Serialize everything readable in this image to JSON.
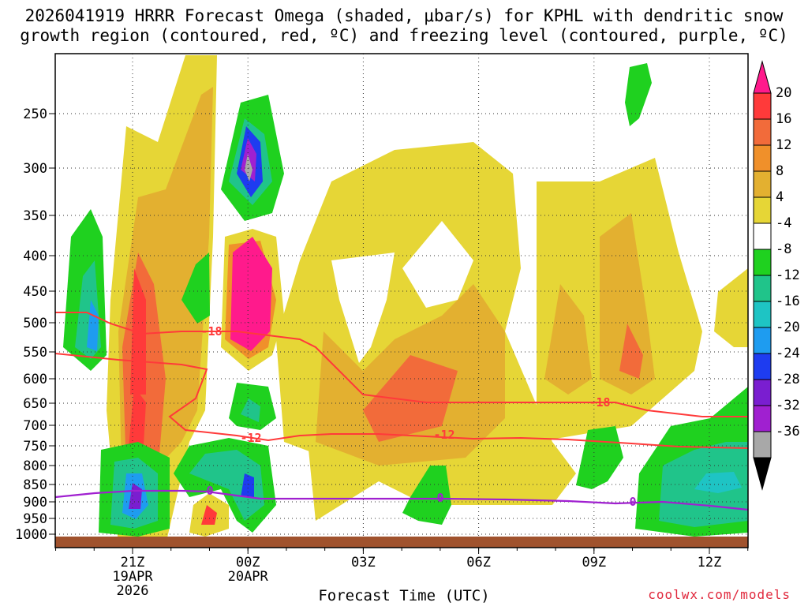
{
  "chart_data": {
    "type": "heatmap",
    "title_line1": "2026041919 HRRR Forecast Omega (shaded, μbar/s) for KPHL with dendritic snow",
    "title_line2": "growth region (contoured, red, ºC) and freezing level (contoured, purple, ºC)",
    "xlabel": "Forecast Time (UTC)",
    "y_ticks": [
      "250",
      "300",
      "350",
      "400",
      "450",
      "500",
      "550",
      "600",
      "650",
      "700",
      "750",
      "800",
      "850",
      "900",
      "950",
      "1000"
    ],
    "x_ticks": [
      {
        "label": "21Z",
        "sub1": "19APR",
        "sub2": "2026"
      },
      {
        "label": "00Z",
        "sub1": "20APR",
        "sub2": ""
      },
      {
        "label": "03Z",
        "sub1": "",
        "sub2": ""
      },
      {
        "label": "06Z",
        "sub1": "",
        "sub2": ""
      },
      {
        "label": "09Z",
        "sub1": "",
        "sub2": ""
      },
      {
        "label": "12Z",
        "sub1": "",
        "sub2": ""
      }
    ],
    "colorbar": {
      "labels": [
        "20",
        "16",
        "12",
        "8",
        "4",
        "-4",
        "-8",
        "-12",
        "-16",
        "-20",
        "-24",
        "-28",
        "-32",
        "-36"
      ],
      "colors": [
        "#ff1a8c",
        "#ff3a3a",
        "#f26b3a",
        "#f0902a",
        "#e3b030",
        "#e6d636",
        "#ffffff",
        "#1fd11f",
        "#20c48a",
        "#1ec4c4",
        "#1e9cf0",
        "#1e3cf0",
        "#7a1ed0",
        "#a020d0",
        "#a8a8a8",
        "#000000"
      ]
    },
    "contour_labels": {
      "dgz_minus18": "-18",
      "dgz_minus12": "-12",
      "freezing": "0"
    },
    "credit": "coolwx.com/models"
  }
}
